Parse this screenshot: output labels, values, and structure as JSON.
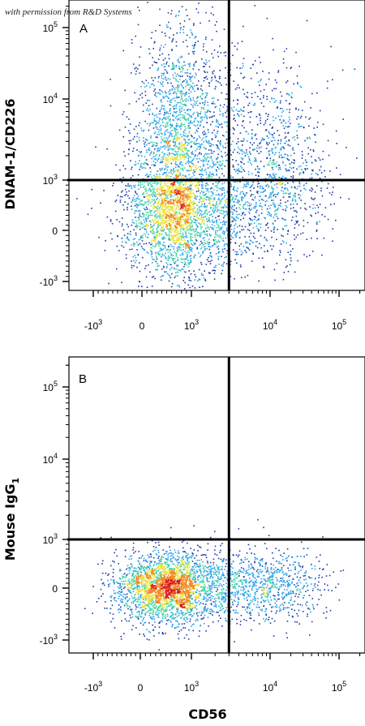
{
  "watermark": "with permission from R&D Systems",
  "chart_data": [
    {
      "type": "scatter",
      "panel_label": "A",
      "ylabel": "DNAM-1/CD226",
      "xlabel": "CD56",
      "x_scale": "biexponential",
      "y_scale": "biexponential",
      "xlim": [
        -2000,
        200000
      ],
      "ylim": [
        -2000,
        200000
      ],
      "xticks": [
        {
          "value": -1000,
          "base": "-10",
          "exp": "3"
        },
        {
          "value": 0,
          "base": "0",
          "exp": ""
        },
        {
          "value": 1000,
          "base": "10",
          "exp": "3"
        },
        {
          "value": 10000,
          "base": "10",
          "exp": "4"
        },
        {
          "value": 100000,
          "base": "10",
          "exp": "5"
        }
      ],
      "yticks": [
        {
          "value": -1000,
          "base": "-10",
          "exp": "3"
        },
        {
          "value": 0,
          "base": "0",
          "exp": ""
        },
        {
          "value": 1000,
          "base": "10",
          "exp": "3"
        },
        {
          "value": 10000,
          "base": "10",
          "exp": "4"
        },
        {
          "value": 100000,
          "base": "10",
          "exp": "5"
        }
      ],
      "quadrant_gate": {
        "x": 3000,
        "y": 1000
      },
      "populations": [
        {
          "center": [
            800,
            1200
          ],
          "spread_decades": [
            0.5,
            0.9
          ],
          "weight": 0.62,
          "peak": "high"
        },
        {
          "center": [
            700,
            100
          ],
          "spread_decades": [
            0.6,
            0.5
          ],
          "weight": 0.2,
          "peak": "medium"
        },
        {
          "center": [
            12000,
            1800
          ],
          "spread_decades": [
            0.4,
            0.55
          ],
          "weight": 0.14,
          "peak": "medium"
        },
        {
          "center": [
            8000,
            200
          ],
          "spread_decades": [
            0.4,
            0.5
          ],
          "weight": 0.04,
          "peak": "low"
        }
      ],
      "density_colors": [
        "#1a3aa8",
        "#2aa3e8",
        "#4bd6a6",
        "#e8e23a",
        "#f08a1e",
        "#d81a1a"
      ]
    },
    {
      "type": "scatter",
      "panel_label": "B",
      "ylabel": "Mouse IgG",
      "ylabel_sub": "1",
      "xlabel": "CD56",
      "x_scale": "biexponential",
      "y_scale": "biexponential",
      "xlim": [
        -2000,
        200000
      ],
      "ylim": [
        -2000,
        200000
      ],
      "xticks": [
        {
          "value": -1000,
          "base": "-10",
          "exp": "3"
        },
        {
          "value": 0,
          "base": "0",
          "exp": ""
        },
        {
          "value": 1000,
          "base": "10",
          "exp": "3"
        },
        {
          "value": 10000,
          "base": "10",
          "exp": "4"
        },
        {
          "value": 100000,
          "base": "10",
          "exp": "5"
        }
      ],
      "yticks": [
        {
          "value": -1000,
          "base": "-10",
          "exp": "3"
        },
        {
          "value": 0,
          "base": "0",
          "exp": ""
        },
        {
          "value": 1000,
          "base": "10",
          "exp": "3"
        },
        {
          "value": 10000,
          "base": "10",
          "exp": "4"
        },
        {
          "value": 100000,
          "base": "10",
          "exp": "5"
        }
      ],
      "quadrant_gate": {
        "x": 3000,
        "y": 1000
      },
      "populations": [
        {
          "center": [
            600,
            20
          ],
          "spread_decades": [
            0.55,
            0.35
          ],
          "weight": 0.8,
          "peak": "high"
        },
        {
          "center": [
            9000,
            60
          ],
          "spread_decades": [
            0.4,
            0.35
          ],
          "weight": 0.2,
          "peak": "low"
        }
      ],
      "density_colors": [
        "#1a3aa8",
        "#2aa3e8",
        "#4bd6a6",
        "#e8e23a",
        "#f08a1e",
        "#d81a1a"
      ]
    }
  ],
  "shared_xlabel": "CD56"
}
